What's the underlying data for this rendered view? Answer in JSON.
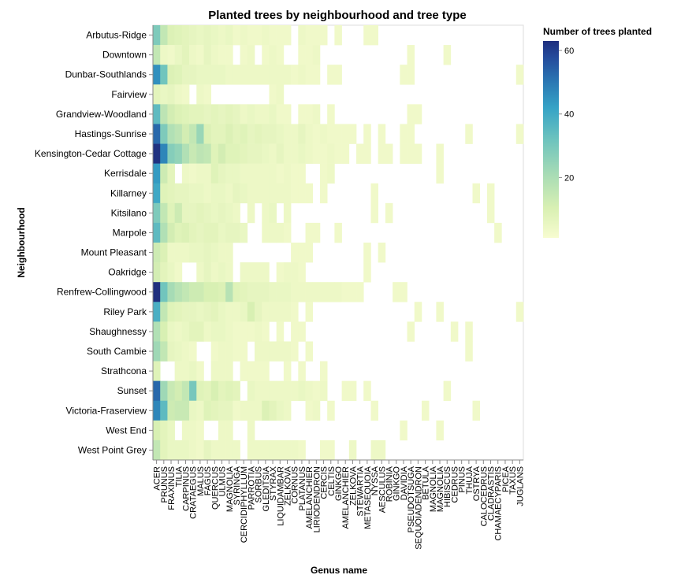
{
  "chart_data": {
    "type": "heatmap",
    "title": "Planted trees by neighbourhood and tree type",
    "xlabel": "Genus name",
    "ylabel": "Neighbourhood",
    "legend": {
      "title": "Number of trees planted",
      "ticks": [
        20,
        40,
        60
      ],
      "range": [
        1,
        63
      ],
      "placement": "right"
    },
    "colors": [
      "#f7fcd0",
      "#d9f0b3",
      "#a8dcb5",
      "#6dc3be",
      "#36a3c6",
      "#2a75b2",
      "#244a9b",
      "#1f2f7e"
    ],
    "neighbourhoods": [
      "Arbutus-Ridge",
      "Downtown",
      "Dunbar-Southlands",
      "Fairview",
      "Grandview-Woodland",
      "Hastings-Sunrise",
      "Kensington-Cedar Cottage",
      "Kerrisdale",
      "Killarney",
      "Kitsilano",
      "Marpole",
      "Mount Pleasant",
      "Oakridge",
      "Renfrew-Collingwood",
      "Riley Park",
      "Shaughnessy",
      "South Cambie",
      "Strathcona",
      "Sunset",
      "Victoria-Fraserview",
      "West End",
      "West Point Grey"
    ],
    "genera": [
      "ACER",
      "PRUNUS",
      "FRAXINUS",
      "TILIA",
      "CARPINUS",
      "CRATAEGUS",
      "MALUS",
      "FAGUS",
      "QUERCUS",
      "ULMUS",
      "MAGNOLIA",
      "SYRINGA",
      "CERCIDIPHYLLUM",
      "PARROTIA",
      "SORBUS",
      "GLEDITSIA",
      "STYRAX",
      "LIQUIDAMBAR",
      "ZELKOVA",
      "CORNUS",
      "PLATANUS",
      "AMELANCHIER",
      "LIRIODENDRON",
      "CERCIS",
      "CELTIS",
      "GINKGO",
      "AMELANCHIER X",
      "ZELKOVA X",
      "STEWARTIA",
      "METASEQUOIA",
      "NYSSA",
      "AESCULUS",
      "ROBINIA",
      "GINKGO B",
      "DAVIDIA",
      "PSEUDOTSUGA",
      "SEQUOIADENDRON",
      "BETULA",
      "MAGNOLIA X",
      "MAGNOLIA",
      "HIBISCUS",
      "CEDRUS",
      "PINUS",
      "THUJA",
      "OSTRYA",
      "CALOCEDRUS",
      "CLADRASTIS",
      "CHAMAECYPARIS",
      "PICEA",
      "TAXUS",
      "JUGLANS"
    ],
    "genera_labels": [
      "ACER",
      "PRUNUS",
      "FRAXINUS",
      "TILIA",
      "CARPINUS",
      "CRATAEGUS",
      "MALUS",
      "FAGUS",
      "QUERCUS",
      "ULMUS",
      "MAGNOLIA",
      "SYRINGA",
      "CERCIDIPHYLLUM",
      "PARROTIA",
      "SORBUS",
      "GLEDITSIA",
      "STYRAX",
      "LIQUIDAMBAR",
      "ZELKOVA",
      "CORNUS",
      "PLATANUS",
      "AMELANCHIER",
      "LIRIODENDRON",
      "CERCIS",
      "CELTIS",
      "GINKGO",
      "AMELANCHIER",
      "ZELKOVA",
      "STEWARTIA",
      "METASEQUOIA",
      "NYSSA",
      "AESCULUS",
      "ROBINIA",
      "GINKGO",
      "DAVIDIA",
      "PSEUDOTSUGA",
      "SEQUOIADENDRON",
      "BETULA",
      "MAGNOLIA",
      "MAGNOLIA",
      "HIBISCUS",
      "CEDRUS",
      "PINUS",
      "THUJA",
      "OSTRYA",
      "CALOCEDRUS",
      "CLADRASTIS",
      "CHAMAECYPARIS",
      "PICEA",
      "TAXUS",
      "JUGLANS"
    ],
    "values": [
      [
        25,
        14,
        9,
        8,
        7,
        6,
        5,
        6,
        5,
        4,
        5,
        3,
        4,
        3,
        3,
        4,
        3,
        3,
        3,
        0,
        4,
        3,
        3,
        3,
        0,
        3,
        0,
        0,
        0,
        3,
        3,
        0,
        0,
        0,
        0,
        0,
        0,
        0,
        0,
        0,
        0,
        0,
        0,
        0,
        0,
        0,
        0,
        0,
        0,
        0,
        0
      ],
      [
        14,
        4,
        3,
        5,
        7,
        4,
        3,
        6,
        4,
        3,
        3,
        0,
        3,
        4,
        0,
        3,
        4,
        3,
        0,
        0,
        3,
        3,
        4,
        0,
        0,
        0,
        0,
        0,
        0,
        0,
        0,
        0,
        0,
        0,
        0,
        3,
        0,
        0,
        0,
        0,
        3,
        0,
        0,
        0,
        0,
        0,
        0,
        0,
        0,
        0,
        0
      ],
      [
        40,
        27,
        9,
        8,
        6,
        6,
        5,
        5,
        5,
        5,
        4,
        4,
        4,
        4,
        4,
        4,
        4,
        4,
        4,
        3,
        4,
        3,
        3,
        0,
        3,
        3,
        0,
        0,
        0,
        0,
        0,
        0,
        0,
        0,
        3,
        3,
        0,
        0,
        0,
        0,
        0,
        0,
        0,
        0,
        0,
        0,
        0,
        0,
        0,
        0,
        3
      ],
      [
        7,
        5,
        6,
        4,
        3,
        0,
        4,
        3,
        0,
        0,
        0,
        0,
        0,
        0,
        0,
        0,
        3,
        4,
        0,
        0,
        0,
        0,
        0,
        0,
        0,
        0,
        0,
        0,
        0,
        0,
        0,
        0,
        0,
        0,
        0,
        0,
        0,
        0,
        0,
        0,
        0,
        0,
        0,
        0,
        0,
        0,
        0,
        0,
        0,
        0,
        0
      ],
      [
        30,
        15,
        11,
        9,
        8,
        7,
        7,
        6,
        7,
        6,
        7,
        6,
        4,
        5,
        4,
        4,
        5,
        3,
        3,
        0,
        3,
        3,
        4,
        0,
        3,
        0,
        0,
        0,
        0,
        0,
        0,
        0,
        0,
        0,
        0,
        3,
        3,
        0,
        0,
        0,
        0,
        0,
        0,
        0,
        0,
        0,
        0,
        0,
        0,
        0,
        0
      ],
      [
        48,
        25,
        17,
        15,
        11,
        14,
        21,
        9,
        7,
        7,
        9,
        7,
        8,
        6,
        7,
        6,
        6,
        5,
        4,
        4,
        6,
        4,
        3,
        4,
        3,
        3,
        3,
        3,
        0,
        3,
        0,
        3,
        0,
        0,
        3,
        3,
        0,
        0,
        0,
        0,
        0,
        0,
        0,
        3,
        0,
        0,
        0,
        0,
        0,
        0,
        3
      ],
      [
        62,
        42,
        24,
        22,
        17,
        13,
        15,
        14,
        8,
        11,
        8,
        8,
        7,
        6,
        6,
        5,
        4,
        6,
        4,
        4,
        5,
        4,
        3,
        3,
        4,
        3,
        3,
        0,
        3,
        3,
        0,
        3,
        3,
        0,
        3,
        3,
        3,
        0,
        0,
        3,
        0,
        0,
        0,
        0,
        0,
        0,
        0,
        0,
        0,
        0,
        0
      ],
      [
        38,
        12,
        7,
        0,
        4,
        3,
        4,
        4,
        8,
        6,
        5,
        5,
        4,
        4,
        4,
        4,
        4,
        3,
        4,
        3,
        3,
        0,
        0,
        3,
        4,
        0,
        0,
        0,
        0,
        0,
        0,
        0,
        0,
        0,
        0,
        0,
        0,
        0,
        0,
        3,
        0,
        0,
        0,
        0,
        0,
        0,
        0,
        0,
        0,
        0,
        0
      ],
      [
        35,
        8,
        7,
        6,
        6,
        5,
        5,
        4,
        5,
        5,
        4,
        6,
        5,
        4,
        4,
        4,
        4,
        4,
        4,
        3,
        3,
        3,
        0,
        3,
        0,
        0,
        0,
        0,
        0,
        0,
        3,
        0,
        0,
        0,
        0,
        0,
        0,
        0,
        0,
        0,
        0,
        0,
        0,
        0,
        3,
        0,
        3,
        0,
        0,
        0,
        0
      ],
      [
        25,
        14,
        8,
        12,
        6,
        6,
        7,
        6,
        5,
        6,
        5,
        4,
        0,
        4,
        0,
        4,
        5,
        0,
        4,
        0,
        0,
        0,
        0,
        0,
        0,
        0,
        0,
        0,
        0,
        0,
        3,
        0,
        3,
        0,
        0,
        0,
        0,
        0,
        0,
        0,
        0,
        0,
        0,
        0,
        0,
        0,
        3,
        0,
        0,
        0,
        0
      ],
      [
        30,
        17,
        11,
        8,
        9,
        7,
        6,
        7,
        7,
        5,
        6,
        6,
        5,
        0,
        0,
        4,
        4,
        4,
        3,
        0,
        0,
        3,
        3,
        0,
        0,
        3,
        0,
        0,
        0,
        0,
        0,
        0,
        0,
        0,
        0,
        0,
        0,
        0,
        0,
        0,
        0,
        0,
        0,
        0,
        0,
        0,
        0,
        3,
        0,
        0,
        0
      ],
      [
        12,
        9,
        4,
        4,
        4,
        5,
        5,
        6,
        5,
        4,
        4,
        0,
        0,
        0,
        0,
        0,
        0,
        0,
        0,
        3,
        3,
        3,
        0,
        0,
        0,
        0,
        0,
        0,
        0,
        3,
        0,
        3,
        0,
        0,
        0,
        0,
        0,
        0,
        0,
        0,
        0,
        0,
        0,
        0,
        0,
        0,
        0,
        0,
        0,
        0,
        0
      ],
      [
        11,
        7,
        5,
        3,
        0,
        0,
        4,
        6,
        4,
        5,
        4,
        0,
        4,
        4,
        4,
        4,
        0,
        3,
        4,
        4,
        3,
        0,
        0,
        0,
        0,
        0,
        0,
        0,
        0,
        3,
        0,
        0,
        0,
        0,
        0,
        0,
        0,
        0,
        0,
        0,
        0,
        0,
        0,
        0,
        0,
        0,
        0,
        0,
        0,
        0,
        0
      ],
      [
        63,
        27,
        19,
        16,
        14,
        12,
        12,
        10,
        10,
        9,
        16,
        8,
        7,
        6,
        6,
        6,
        5,
        5,
        5,
        4,
        4,
        4,
        4,
        4,
        4,
        4,
        3,
        3,
        3,
        0,
        0,
        0,
        0,
        3,
        3,
        0,
        0,
        0,
        0,
        0,
        0,
        0,
        0,
        0,
        0,
        0,
        0,
        0,
        0,
        0,
        0
      ],
      [
        33,
        14,
        8,
        7,
        6,
        6,
        5,
        6,
        7,
        5,
        4,
        4,
        5,
        10,
        6,
        4,
        4,
        4,
        4,
        3,
        0,
        3,
        0,
        0,
        0,
        0,
        0,
        0,
        0,
        0,
        0,
        0,
        0,
        0,
        0,
        0,
        3,
        0,
        0,
        3,
        0,
        0,
        0,
        0,
        0,
        0,
        0,
        0,
        0,
        0,
        3
      ],
      [
        17,
        10,
        5,
        4,
        5,
        7,
        7,
        4,
        5,
        5,
        4,
        3,
        3,
        3,
        4,
        3,
        0,
        3,
        0,
        3,
        3,
        0,
        0,
        0,
        0,
        0,
        0,
        0,
        0,
        0,
        0,
        0,
        0,
        0,
        0,
        3,
        0,
        0,
        0,
        0,
        0,
        3,
        0,
        3,
        0,
        0,
        0,
        0,
        0,
        0,
        0
      ],
      [
        20,
        14,
        6,
        5,
        4,
        3,
        0,
        0,
        3,
        4,
        4,
        3,
        3,
        0,
        4,
        4,
        4,
        4,
        4,
        3,
        0,
        3,
        0,
        0,
        0,
        0,
        0,
        0,
        0,
        0,
        0,
        0,
        0,
        0,
        0,
        0,
        0,
        0,
        0,
        0,
        0,
        0,
        0,
        3,
        0,
        0,
        0,
        0,
        0,
        0,
        0
      ],
      [
        8,
        0,
        0,
        4,
        4,
        5,
        3,
        0,
        4,
        4,
        4,
        0,
        3,
        3,
        3,
        3,
        0,
        0,
        3,
        0,
        3,
        0,
        0,
        3,
        0,
        0,
        0,
        0,
        0,
        0,
        0,
        0,
        0,
        0,
        0,
        0,
        0,
        0,
        0,
        0,
        0,
        0,
        0,
        0,
        0,
        0,
        0,
        0,
        0,
        0,
        0
      ],
      [
        48,
        20,
        13,
        11,
        14,
        26,
        8,
        7,
        10,
        7,
        8,
        7,
        0,
        5,
        4,
        4,
        4,
        4,
        4,
        4,
        5,
        4,
        3,
        4,
        0,
        0,
        3,
        3,
        0,
        3,
        0,
        0,
        0,
        0,
        0,
        0,
        0,
        0,
        0,
        0,
        3,
        0,
        0,
        0,
        0,
        0,
        0,
        0,
        0,
        0,
        0
      ],
      [
        42,
        30,
        12,
        13,
        13,
        5,
        4,
        8,
        7,
        6,
        6,
        3,
        4,
        4,
        4,
        9,
        7,
        5,
        4,
        0,
        0,
        3,
        4,
        0,
        3,
        0,
        0,
        0,
        0,
        0,
        3,
        0,
        0,
        0,
        0,
        0,
        0,
        3,
        0,
        0,
        0,
        0,
        0,
        0,
        3,
        0,
        0,
        0,
        0,
        0,
        0
      ],
      [
        10,
        7,
        5,
        0,
        4,
        4,
        3,
        0,
        0,
        4,
        4,
        0,
        0,
        4,
        0,
        0,
        0,
        0,
        0,
        0,
        0,
        0,
        0,
        0,
        0,
        0,
        0,
        0,
        0,
        0,
        0,
        0,
        0,
        0,
        3,
        0,
        0,
        0,
        0,
        3,
        0,
        0,
        0,
        0,
        0,
        0,
        0,
        0,
        0,
        0,
        0
      ],
      [
        14,
        7,
        5,
        5,
        5,
        4,
        3,
        6,
        4,
        4,
        4,
        4,
        0,
        4,
        4,
        4,
        4,
        4,
        4,
        4,
        3,
        0,
        0,
        3,
        3,
        0,
        0,
        4,
        0,
        0,
        4,
        4,
        0,
        0,
        0,
        0,
        0,
        0,
        0,
        0,
        0,
        0,
        0,
        0,
        0,
        0,
        0,
        0,
        0,
        0,
        0
      ]
    ]
  }
}
